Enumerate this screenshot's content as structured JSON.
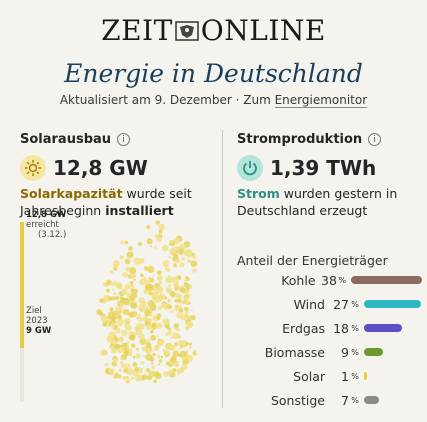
{
  "brand": {
    "left": "ZEIT",
    "right": "ONLINE"
  },
  "headline": "Energie in Deutschland",
  "updated": {
    "prefix": "Aktualisiert am 9. Dezember · Zum ",
    "link": "Energiemonitor"
  },
  "solar": {
    "title": "Solarausbau",
    "value": "12,8 GW",
    "desc_bold": "Solarkapazität",
    "desc_mid": " wurde seit Jahresbeginn ",
    "desc_bold2": "installiert",
    "reached_value": "12,8 GW",
    "reached_label": "erreicht",
    "reached_date": "(3.12.)",
    "goal_label": "Ziel",
    "goal_year": "2023",
    "goal_value": "9 GW",
    "progress_fraction": 0.7,
    "accent": "#e3cd44"
  },
  "power": {
    "title": "Stromproduktion",
    "value": "1,39 TWh",
    "desc_bold": "Strom",
    "desc_rest": " wurden gestern in Deutschland erzeugt",
    "accent": "#2f8f87"
  },
  "mix": {
    "title": "Anteil der Energieträger",
    "items": [
      {
        "name": "Kohle",
        "value": "38",
        "pct": 38,
        "color": "#8b6b63"
      },
      {
        "name": "Wind",
        "value": "27",
        "pct": 27,
        "color": "#2fb9c5"
      },
      {
        "name": "Erdgas",
        "value": "18",
        "pct": 18,
        "color": "#5b4fc4"
      },
      {
        "name": "Biomasse",
        "value": "9",
        "pct": 9,
        "color": "#6f9a2c"
      },
      {
        "name": "Solar",
        "value": "1",
        "pct": 1,
        "color": "#e3cd44"
      },
      {
        "name": "Sonstige",
        "value": "7",
        "pct": 7,
        "color": "#8a8a8a"
      }
    ]
  }
}
